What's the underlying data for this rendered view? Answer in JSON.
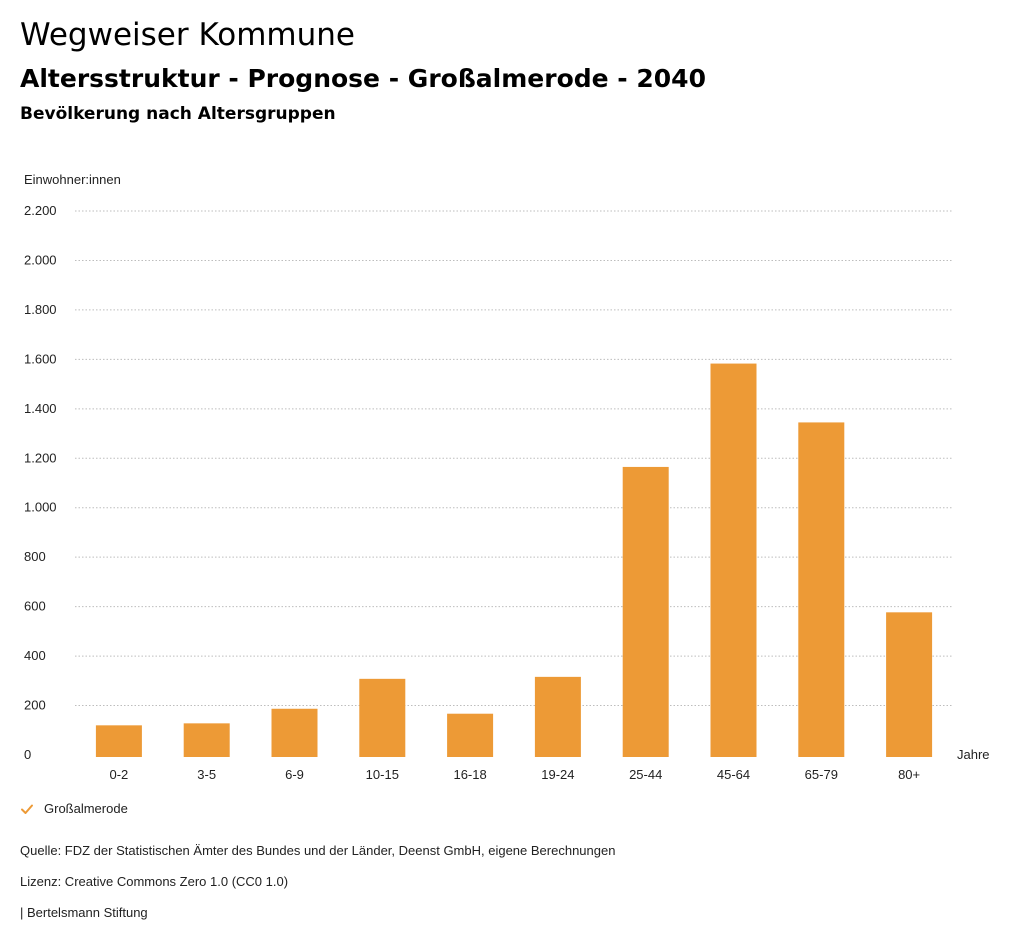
{
  "header": {
    "title": "Wegweiser Kommune",
    "subtitle": "Altersstruktur - Prognose - Großalmerode - 2040",
    "section_title": "Bevölkerung nach Altersgruppen"
  },
  "colors": {
    "bar": "#ed9a36",
    "grid": "#bdbdbd",
    "text": "#222222"
  },
  "chart_data": {
    "type": "bar",
    "title": "Bevölkerung nach Altersgruppen",
    "ylabel": "Einwohner:innen",
    "xlabel": "Jahre",
    "categories": [
      "0-2",
      "3-5",
      "6-9",
      "10-15",
      "16-18",
      "19-24",
      "25-44",
      "45-64",
      "65-79",
      "80+"
    ],
    "series": [
      {
        "name": "Großalmerode",
        "values": [
          120,
          128,
          187,
          308,
          167,
          316,
          1165,
          1583,
          1345,
          577
        ]
      }
    ],
    "ylim": [
      0,
      2200
    ],
    "yticks": [
      0,
      200,
      400,
      600,
      800,
      1000,
      1200,
      1400,
      1600,
      1800,
      2000,
      2200
    ],
    "ytick_labels": [
      "0",
      "200",
      "400",
      "600",
      "800",
      "1.000",
      "1.200",
      "1.400",
      "1.600",
      "1.800",
      "2.000",
      "2.200"
    ],
    "grid": true,
    "legend_position": "bottom-left"
  },
  "legend": {
    "label": "Großalmerode"
  },
  "footer": {
    "source": "Quelle: FDZ der Statistischen Ämter des Bundes und der Länder, Deenst GmbH, eigene Berechnungen",
    "license": "Lizenz: Creative Commons Zero 1.0 (CC0 1.0)",
    "publisher": "| Bertelsmann Stiftung"
  }
}
